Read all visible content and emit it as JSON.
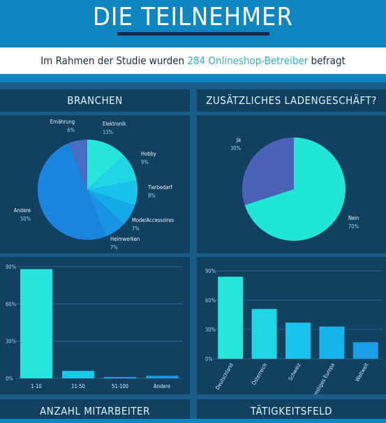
{
  "header": {
    "title": "DIE TEILNEHMER",
    "intro_before": "Im Rahmen der Studie wurden ",
    "intro_highlight": "284 Onlineshop-Betreiber",
    "intro_after": " befragt"
  },
  "panels": {
    "branchen_title": "BRANCHEN",
    "ladengeschaeft_title": "ZUSÄTZLICHES LADENGESCHÄFT?",
    "mitarbeiter_title": "ANZAHL MITARBEITER",
    "taetigkeitsfeld_title": "TÄTIGKEITSFELD"
  },
  "colors": {
    "background": "#0f86bf",
    "band": "#1a5c8a",
    "panel": "#12405f",
    "highlight": "#2bb5c9"
  },
  "chart_data": [
    {
      "id": "branchen",
      "type": "pie",
      "title": "BRANCHEN",
      "slices": [
        {
          "label": "Elektronik",
          "value": 13,
          "display": "13%",
          "color": "#26e5dc"
        },
        {
          "label": "Hobby",
          "value": 9,
          "display": "9%",
          "color": "#22d5e6"
        },
        {
          "label": "Tierbedarf",
          "value": 8,
          "display": "8%",
          "color": "#18c2ed"
        },
        {
          "label": "Mode/Accessoires",
          "value": 7,
          "display": "7%",
          "color": "#14aaea"
        },
        {
          "label": "Heimwerken",
          "value": 7,
          "display": "7%",
          "color": "#1794e4"
        },
        {
          "label": "Andere",
          "value": 50,
          "display": "50%",
          "color": "#1b84df"
        },
        {
          "label": "Ernährung",
          "value": 6,
          "display": "6%",
          "color": "#4b6cc4"
        }
      ]
    },
    {
      "id": "ladengeschaeft",
      "type": "pie",
      "title": "ZUSÄTZLICHES LADENGESCHÄFT?",
      "slices": [
        {
          "label": "Nein",
          "value": 70,
          "display": "70%",
          "color": "#20e6d6"
        },
        {
          "label": "Ja",
          "value": 30,
          "display": "30%",
          "color": "#4a63b8"
        }
      ]
    },
    {
      "id": "mitarbeiter",
      "type": "bar",
      "title": "ANZAHL MITARBEITER",
      "categories": [
        "1-10",
        "11-50",
        "51-100",
        "Andere"
      ],
      "values": [
        88,
        6,
        1,
        2
      ],
      "yticks": [
        "0%",
        "30%",
        "60%",
        "90%"
      ],
      "ylim": [
        0,
        90
      ],
      "colors": [
        "#26e5dc",
        "#18c9ea",
        "#16b3ec",
        "#1a9fe6"
      ]
    },
    {
      "id": "taetigkeitsfeld",
      "type": "bar",
      "title": "TÄTIGKEITSFELD",
      "categories": [
        "Deutschland",
        "Österreich",
        "Schweiz",
        "Sonstiges Europa",
        "Weltweit"
      ],
      "values": [
        84,
        51,
        37,
        33,
        17
      ],
      "yticks": [
        "0%",
        "30%",
        "60%",
        "90%"
      ],
      "ylim": [
        0,
        90
      ],
      "colors": [
        "#26e5dc",
        "#20d5e6",
        "#18c4ed",
        "#16b3ec",
        "#1a9fe6"
      ]
    }
  ]
}
